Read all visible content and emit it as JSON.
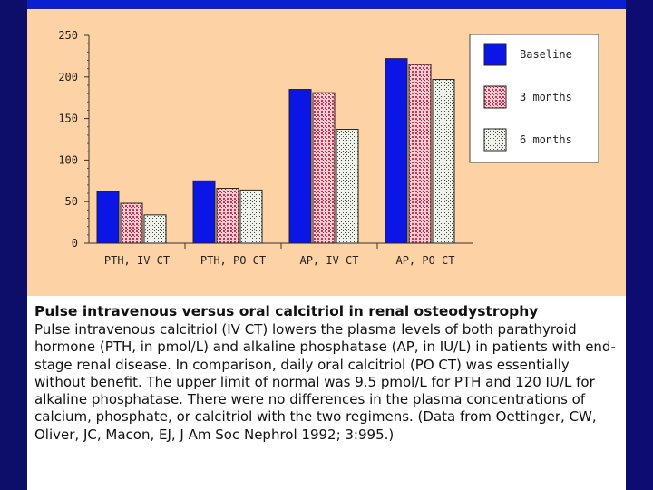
{
  "colors": {
    "baseline": "#0b16e6",
    "months3": "#d04a66",
    "months6": "#7a8a7a",
    "background": "#fdd2a5"
  },
  "chart_data": {
    "type": "bar",
    "categories": [
      "PTH, IV CT",
      "PTH, PO CT",
      "AP, IV CT",
      "AP, PO CT"
    ],
    "series": [
      {
        "name": "Baseline",
        "values": [
          62,
          75,
          185,
          222
        ]
      },
      {
        "name": "3 months",
        "values": [
          48,
          66,
          181,
          215
        ]
      },
      {
        "name": "6 months",
        "values": [
          34,
          64,
          137,
          197
        ]
      }
    ],
    "yticks": [
      0,
      50,
      100,
      150,
      200,
      250
    ],
    "ylim": [
      0,
      250
    ],
    "legend": [
      "Baseline",
      "3 months",
      "6 months"
    ],
    "legend_position": "top-right"
  },
  "caption": {
    "title": "Pulse intravenous versus oral calcitriol in renal osteodystrophy",
    "body": "Pulse intravenous calcitriol (IV CT) lowers the plasma levels of both parathyroid hormone (PTH, in pmol/L) and alkaline phosphatase (AP, in IU/L) in patients with end-stage renal disease. In comparison, daily oral calcitriol (PO CT) was essentially without benefit. The upper limit of normal was 9.5 pmol/L for PTH and 120 IU/L for alkaline phosphatase. There were no differences in the plasma concentrations of calcium, phosphate, or calcitriol with the two regimens. (Data from Oettinger, CW, Oliver, JC, Macon, EJ, J Am Soc Nephrol 1992; 3:995.)"
  }
}
